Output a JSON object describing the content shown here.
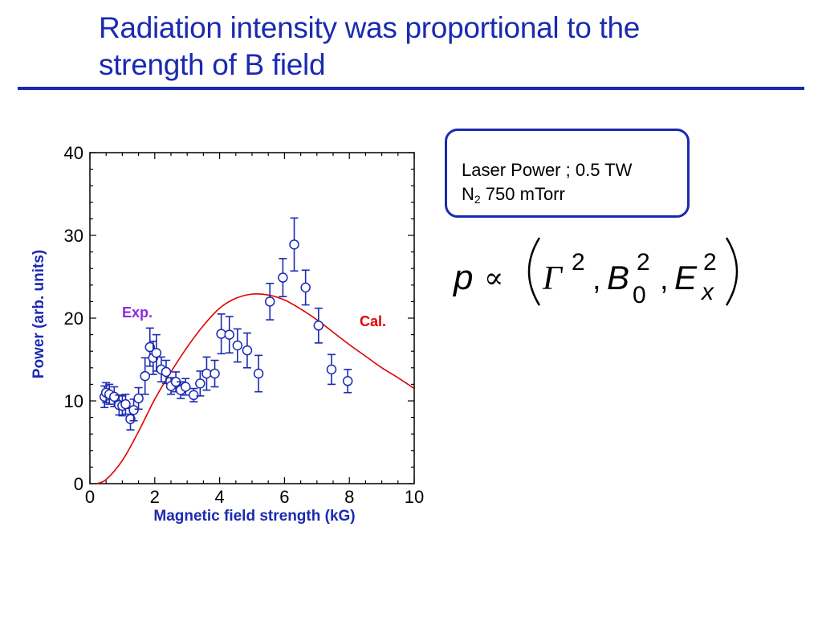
{
  "slide": {
    "title_line1": "Radiation intensity was proportional to the",
    "title_line2": "strength of B field"
  },
  "info_box": {
    "line1": "Laser Power ; 0.5 TW",
    "line2_prefix": "N",
    "line2_sub": "2",
    "line2_rest": " 750 mTorr"
  },
  "formula": {
    "lhs": "p",
    "relation": "∝",
    "gamma": "Γ",
    "gamma_exp": "2",
    "comma1": ",",
    "b": "B",
    "b_exp": "2",
    "b_sub": "0",
    "comma2": ",",
    "e": "E",
    "e_exp": "2",
    "e_sub": "x"
  },
  "colors": {
    "title": "#1a2ab0",
    "exp_series": "#1a2ab0",
    "cal_series": "#e00000",
    "exp_label": "#8a2be2"
  },
  "chart_data": {
    "type": "scatter",
    "xlabel": "Magnetic field strength (kG)",
    "ylabel": "Power (arb. units)",
    "xlim": [
      0,
      10
    ],
    "ylim": [
      0,
      40
    ],
    "x_ticks": [
      "0",
      "2",
      "4",
      "6",
      "8",
      "10"
    ],
    "y_ticks": [
      "0",
      "10",
      "20",
      "30",
      "40"
    ],
    "grid": false,
    "series": [
      {
        "name": "Exp.",
        "type": "scatter_with_error_bars",
        "points": [
          {
            "x": 0.45,
            "y": 10.5,
            "err": 1.3
          },
          {
            "x": 0.5,
            "y": 11.0,
            "err": 1.2
          },
          {
            "x": 0.6,
            "y": 10.8,
            "err": 1.2
          },
          {
            "x": 0.75,
            "y": 10.5,
            "err": 1.2
          },
          {
            "x": 0.9,
            "y": 9.5,
            "err": 1.2
          },
          {
            "x": 1.0,
            "y": 9.4,
            "err": 1.2
          },
          {
            "x": 1.1,
            "y": 9.6,
            "err": 1.2
          },
          {
            "x": 1.25,
            "y": 7.8,
            "err": 1.3
          },
          {
            "x": 1.35,
            "y": 8.9,
            "err": 1.3
          },
          {
            "x": 1.5,
            "y": 10.3,
            "err": 1.3
          },
          {
            "x": 1.7,
            "y": 13.0,
            "err": 2.2
          },
          {
            "x": 1.85,
            "y": 16.5,
            "err": 2.3
          },
          {
            "x": 1.95,
            "y": 15.2,
            "err": 2.0
          },
          {
            "x": 2.05,
            "y": 15.8,
            "err": 2.2
          },
          {
            "x": 2.2,
            "y": 13.8,
            "err": 1.5
          },
          {
            "x": 2.35,
            "y": 13.5,
            "err": 1.4
          },
          {
            "x": 2.5,
            "y": 11.8,
            "err": 1.0
          },
          {
            "x": 2.65,
            "y": 12.3,
            "err": 1.2
          },
          {
            "x": 2.8,
            "y": 11.3,
            "err": 1.0
          },
          {
            "x": 2.95,
            "y": 11.7,
            "err": 1.0
          },
          {
            "x": 3.2,
            "y": 10.7,
            "err": 0.8
          },
          {
            "x": 3.4,
            "y": 12.1,
            "err": 1.5
          },
          {
            "x": 3.6,
            "y": 13.3,
            "err": 2.0
          },
          {
            "x": 3.85,
            "y": 13.3,
            "err": 1.6
          },
          {
            "x": 4.05,
            "y": 18.1,
            "err": 2.4
          },
          {
            "x": 4.3,
            "y": 18.0,
            "err": 2.2
          },
          {
            "x": 4.55,
            "y": 16.7,
            "err": 2.0
          },
          {
            "x": 4.85,
            "y": 16.1,
            "err": 2.1
          },
          {
            "x": 5.2,
            "y": 13.3,
            "err": 2.2
          },
          {
            "x": 5.55,
            "y": 22.0,
            "err": 2.2
          },
          {
            "x": 5.95,
            "y": 24.9,
            "err": 2.3
          },
          {
            "x": 6.3,
            "y": 28.9,
            "err": 3.2
          },
          {
            "x": 6.65,
            "y": 23.7,
            "err": 2.1
          },
          {
            "x": 7.05,
            "y": 19.1,
            "err": 2.1
          },
          {
            "x": 7.45,
            "y": 13.8,
            "err": 1.8
          },
          {
            "x": 7.95,
            "y": 12.4,
            "err": 1.4
          }
        ]
      },
      {
        "name": "Cal.",
        "type": "line",
        "x": [
          0.2,
          0.5,
          1.0,
          1.5,
          2.0,
          2.5,
          3.0,
          3.5,
          4.0,
          4.5,
          5.0,
          5.5,
          6.0,
          6.5,
          7.0,
          7.5,
          8.0,
          8.5,
          9.0,
          9.5,
          10.0
        ],
        "y": [
          0.0,
          0.5,
          2.8,
          6.3,
          10.2,
          13.5,
          16.5,
          19.1,
          21.2,
          22.4,
          22.9,
          22.8,
          22.2,
          21.1,
          19.8,
          18.3,
          16.8,
          15.4,
          14.0,
          12.8,
          11.5
        ]
      }
    ]
  }
}
